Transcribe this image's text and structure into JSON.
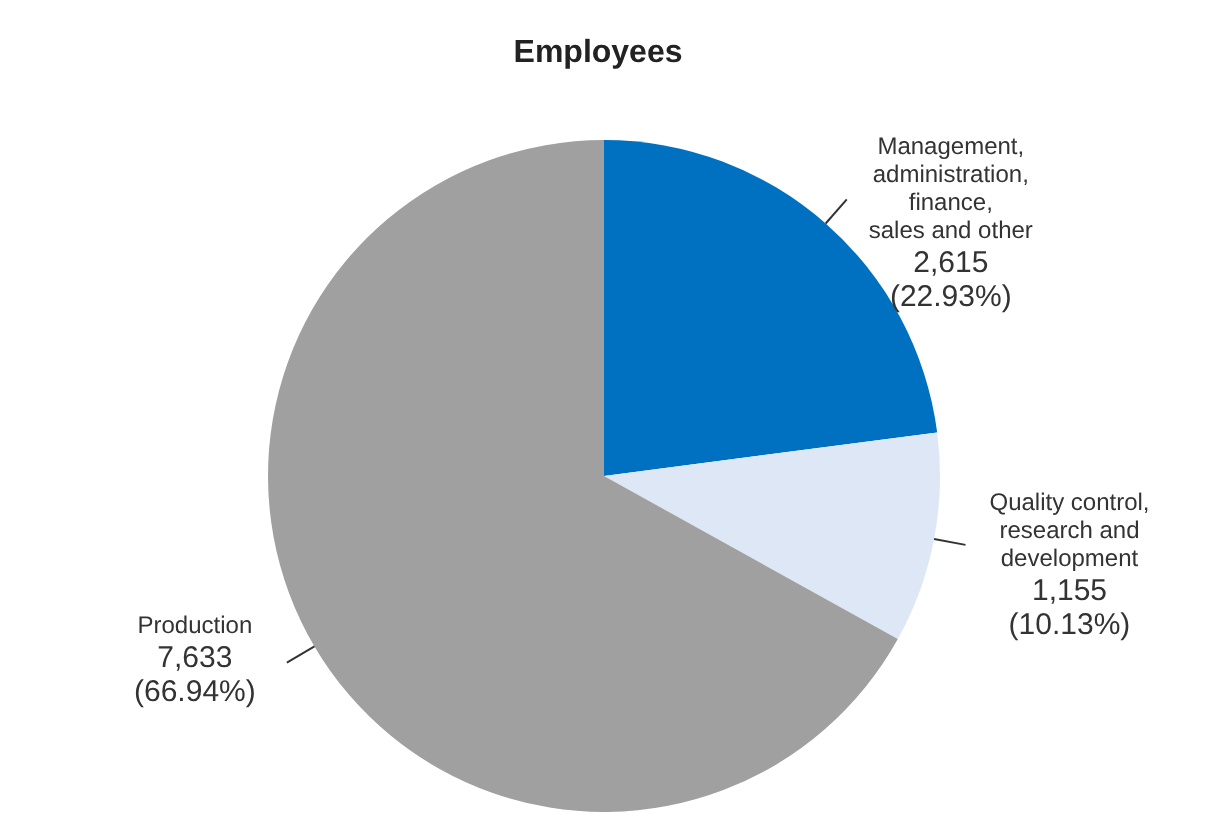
{
  "chart_data": {
    "type": "pie",
    "title": "Employees",
    "categories": [
      "Management, administration, finance, sales and other",
      "Quality control, research and development",
      "Production"
    ],
    "values": [
      2615,
      1155,
      7633
    ],
    "colors": [
      "#0070c0",
      "#dde7f5",
      "#a0a0a0"
    ],
    "value_labels": [
      "2,615 (22.93%)",
      "1,155 (10.13%)",
      "7,633 (66.94%)"
    ],
    "legend": false
  }
}
